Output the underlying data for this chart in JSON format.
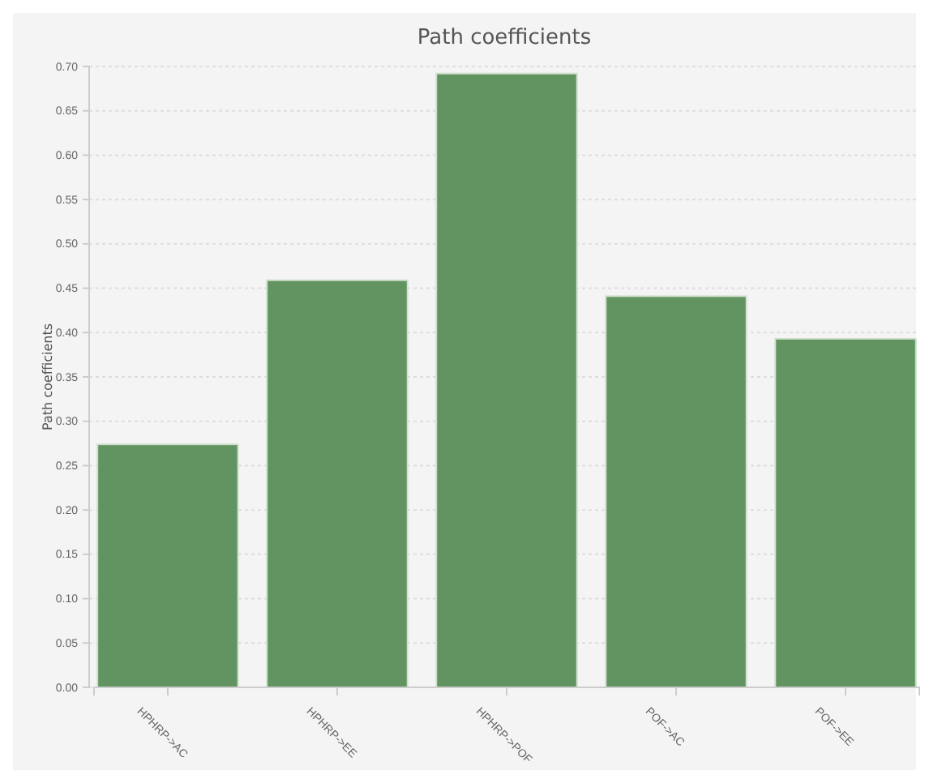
{
  "chart_data": {
    "type": "bar",
    "title": "Path coefficients",
    "ylabel": "Path coefficients",
    "categories": [
      "HPHRP->AC",
      "HPHRP->EE",
      "HPHRP->POF",
      "POF->AC",
      "POF->EE"
    ],
    "values": [
      0.274,
      0.459,
      0.692,
      0.441,
      0.393
    ],
    "color": "#629462",
    "ylim": [
      0,
      0.7
    ],
    "yticks": [
      {
        "value": 0,
        "label": "0.00"
      },
      {
        "value": 0.05,
        "label": "0.05"
      },
      {
        "value": 0.1,
        "label": "0.10"
      },
      {
        "value": 0.15,
        "label": "0.15"
      },
      {
        "value": 0.2,
        "label": "0.20"
      },
      {
        "value": 0.25,
        "label": "0.25"
      },
      {
        "value": 0.3,
        "label": "0.30"
      },
      {
        "value": 0.35,
        "label": "0.35"
      },
      {
        "value": 0.4,
        "label": "0.40"
      },
      {
        "value": 0.45,
        "label": "0.45"
      },
      {
        "value": 0.5,
        "label": "0.50"
      },
      {
        "value": 0.55,
        "label": "0.55"
      },
      {
        "value": 0.6,
        "label": "0.60"
      },
      {
        "value": 0.65,
        "label": "0.65"
      },
      {
        "value": 0.7,
        "label": "0.70"
      }
    ],
    "grid": "y"
  }
}
